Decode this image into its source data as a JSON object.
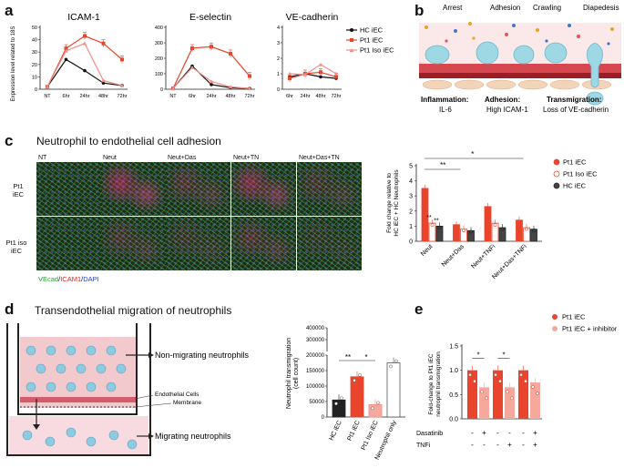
{
  "panels": {
    "a": {
      "letter": "a"
    },
    "b": {
      "letter": "b"
    },
    "c": {
      "letter": "c",
      "title": "Neutrophil to endothelial cell adhesion"
    },
    "d": {
      "letter": "d",
      "title": "Transendothelial migration of neutrophils"
    },
    "e": {
      "letter": "e"
    }
  },
  "panel_a": {
    "ylabel": "Expression level related to 18S",
    "legend": [
      "HC iEC",
      "Pt1 iEC",
      "Pt1 Iso iEC"
    ],
    "colors": {
      "hc": "#111111",
      "pt1": "#e8452c",
      "iso": "#f08f86"
    }
  },
  "panel_b": {
    "stages": [
      "Arrest",
      "Adhesion",
      "Crawling",
      "Diapedesis"
    ],
    "captions": [
      {
        "head": "Inflammation:",
        "sub": "IL-6"
      },
      {
        "head": "Adhesion:",
        "sub": "High ICAM-1"
      },
      {
        "head": "Transmigration:",
        "sub": "Loss of VE-cadherin"
      }
    ]
  },
  "panel_c_images": {
    "columns": [
      "NT",
      "Neut",
      "Neut+Das",
      "Neut+TN",
      "Neut+Das+TN"
    ],
    "rows": [
      [
        "Pt1",
        "iEC"
      ],
      [
        "Pt1 iso",
        "iEC"
      ]
    ],
    "stain": {
      "ve": "VEcad",
      "sep1": "/",
      "icam": "ICAM1",
      "sep2": "/",
      "dapi": "DAPI"
    }
  },
  "panel_d_schematic": {
    "labels": [
      "Non-migrating neutrophils",
      "Endothelial  Cells",
      "Membrane",
      "Migrating neutrophils"
    ]
  },
  "panel_e": {
    "legend": [
      "Pt1 iEC",
      "Pt1 iEC + inhibitor"
    ],
    "row_labels": [
      "Dasatinib",
      "TNFi"
    ],
    "dasatinib": [
      "-",
      "+",
      "-",
      "-",
      "-",
      "+"
    ],
    "tnfi": [
      "-",
      "-",
      "-",
      "+",
      "-",
      "+"
    ]
  },
  "chart_data": [
    {
      "type": "line",
      "title": "ICAM-1",
      "categories": [
        "NT",
        "6hr",
        "24hr",
        "48hr",
        "72hr"
      ],
      "ylim": [
        0,
        50
      ],
      "yticks": [
        "0",
        "10",
        "20",
        "30",
        "40",
        "50"
      ],
      "series": [
        {
          "name": "HC iEC",
          "values": [
            2,
            24,
            15,
            5,
            3
          ]
        },
        {
          "name": "Pt1 iEC",
          "values": [
            2,
            33,
            43,
            37,
            24
          ]
        },
        {
          "name": "Pt1 Iso iEC",
          "values": [
            2,
            31,
            37,
            7,
            3
          ]
        }
      ]
    },
    {
      "type": "line",
      "title": "E-selectin",
      "categories": [
        "NT",
        "6hr",
        "24hr",
        "48hr",
        "72hr"
      ],
      "ylim": [
        0,
        400
      ],
      "yticks": [
        "0",
        "100",
        "200",
        "300",
        "400"
      ],
      "series": [
        {
          "name": "HC iEC",
          "values": [
            5,
            150,
            30,
            10,
            5
          ]
        },
        {
          "name": "Pt1 iEC",
          "values": [
            5,
            265,
            275,
            230,
            85
          ]
        },
        {
          "name": "Pt1 Iso iEC",
          "values": [
            5,
            140,
            50,
            15,
            5
          ]
        }
      ]
    },
    {
      "type": "line",
      "title": "VE-cadherin",
      "categories": [
        "6hr",
        "24hr",
        "48hr",
        "72hr"
      ],
      "ylim": [
        0,
        4
      ],
      "yticks": [
        "0",
        "1",
        "2",
        "3",
        "4"
      ],
      "series": [
        {
          "name": "HC iEC",
          "values": [
            0.8,
            1.0,
            0.8,
            0.7
          ]
        },
        {
          "name": "Pt1 iEC",
          "values": [
            0.7,
            1.0,
            1.1,
            0.8
          ]
        },
        {
          "name": "Pt1 Iso iEC",
          "values": [
            1.0,
            0.95,
            1.6,
            1.0
          ]
        }
      ]
    },
    {
      "type": "bar",
      "ylabel": "Fold change relative to HC iEC + HC Neutrophils",
      "categories": [
        "Neut",
        "Neut+Das",
        "Neut+TNFi",
        "Neut+Das+TNFi"
      ],
      "ylim": [
        0,
        5
      ],
      "yticks": [
        "0",
        "1",
        "2",
        "3",
        "4",
        "5"
      ],
      "legend": [
        "Pt1 iEC",
        "Pt1 Iso iEC",
        "HC iEC"
      ],
      "series": [
        {
          "name": "Pt1 iEC",
          "values": [
            3.5,
            1.1,
            2.3,
            1.4
          ]
        },
        {
          "name": "Pt1 Iso iEC",
          "values": [
            1.2,
            0.8,
            1.2,
            0.9
          ]
        },
        {
          "name": "HC iEC",
          "values": [
            1.0,
            0.7,
            0.9,
            0.8
          ]
        }
      ],
      "significance": [
        "**",
        "**",
        "**",
        "*"
      ]
    },
    {
      "type": "bar",
      "ylabel": "Neutrophil transmigration (cell count)",
      "categories": [
        "HC iEC",
        "Pt1 iEC",
        "Pt1 Iso iEC",
        "Neutrophil only"
      ],
      "yticks": [
        "0",
        "50000",
        "100000",
        "150000",
        "200000",
        "300000",
        "400000"
      ],
      "values": [
        55000,
        130000,
        40000,
        175000
      ],
      "significance": [
        "**",
        "*"
      ]
    },
    {
      "type": "bar",
      "ylabel": "Fold-change to Pt1 iEC neutrophil transmigration",
      "ylim": [
        0,
        1.5
      ],
      "yticks": [
        "0.0",
        "0.5",
        "1.0",
        "1.5"
      ],
      "series": [
        {
          "name": "Pt1 iEC",
          "values": [
            1.0,
            1.0,
            1.0
          ]
        },
        {
          "name": "Pt1 iEC + inhibitor",
          "values": [
            0.65,
            0.65,
            0.75
          ]
        }
      ],
      "significance": [
        "*",
        "*"
      ]
    }
  ]
}
